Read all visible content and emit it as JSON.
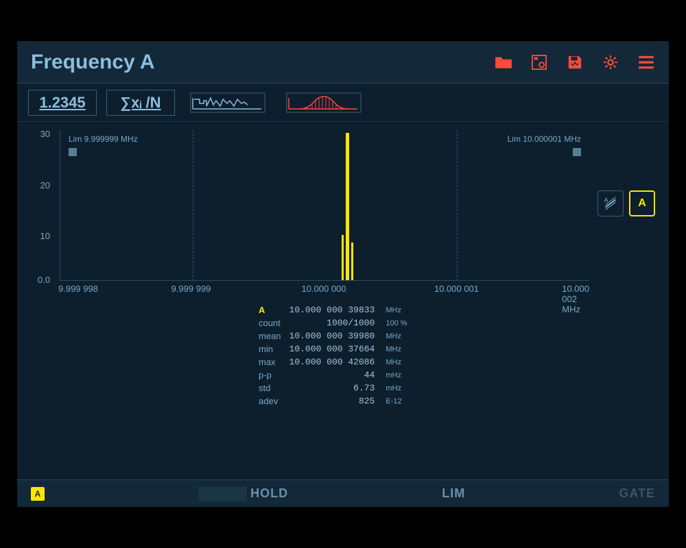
{
  "title": "Frequency A",
  "colors": {
    "bg": "#0d1f2d",
    "panel": "#132838",
    "text_light": "#8bbde0",
    "text_dim": "#7aa8c8",
    "accent_red": "#ff4a3a",
    "accent_yellow": "#ffe600",
    "grid": "#3a5568"
  },
  "toolbar": {
    "number": "1.2345",
    "formula": "∑xᵢ /N"
  },
  "chart": {
    "type": "histogram",
    "y_ticks": [
      {
        "v": 30,
        "pct": 0
      },
      {
        "v": 20,
        "pct": 33.3
      },
      {
        "v": 10,
        "pct": 66.6
      },
      {
        "v": "0.0",
        "pct": 99
      }
    ],
    "x_ticks": [
      {
        "label": "9.999 998",
        "pct": 0
      },
      {
        "label": "9.999 999",
        "pct": 25
      },
      {
        "label": "10.000 000",
        "pct": 50
      },
      {
        "label": "10.000 001",
        "pct": 75
      },
      {
        "label": "10.000 002 MHz",
        "pct": 100
      }
    ],
    "lim_left": {
      "label": "Lim 9.999999 MHz",
      "pct": 25
    },
    "lim_right": {
      "label": "Lim 10.000001 MHz",
      "pct": 75
    },
    "peak": {
      "left_pct": 54,
      "width_pct": 2,
      "height_pct": 98
    },
    "bar_color": "#ffe600"
  },
  "side": {
    "channel": "A"
  },
  "stats": {
    "rows": [
      {
        "label": "A",
        "val": "10.000 000 39833",
        "unit": "MHz",
        "hl": true
      },
      {
        "label": "count",
        "val": "1000/1000",
        "unit": "100 %"
      },
      {
        "label": "mean",
        "val": "10.000 000 39980",
        "unit": "MHz"
      },
      {
        "label": "min",
        "val": "10.000 000 37664",
        "unit": "MHz"
      },
      {
        "label": "max",
        "val": "10.000 000 42086",
        "unit": "MHz"
      },
      {
        "label": "p-p",
        "val": "44",
        "unit": "mHz"
      },
      {
        "label": "std",
        "val": "6.73",
        "unit": "mHz"
      },
      {
        "label": "adev",
        "val": "825",
        "unit": "E-12"
      }
    ]
  },
  "footer": {
    "badge": "A",
    "hold": "HOLD",
    "lim": "LIM",
    "gate": "GATE"
  }
}
